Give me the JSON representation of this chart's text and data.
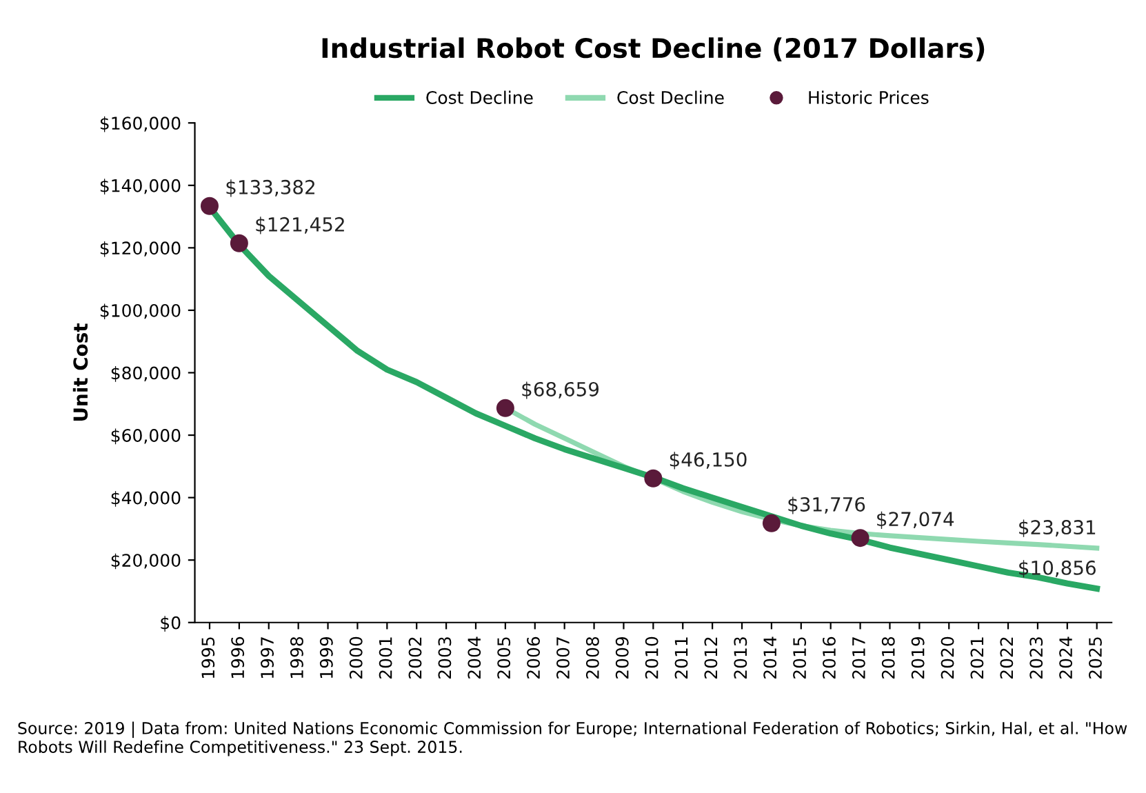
{
  "chart_data": {
    "type": "line",
    "title": "Industrial Robot Cost Decline (2017 Dollars)",
    "ylabel": "Unit Cost",
    "categories": [
      "1995",
      "1996",
      "1997",
      "1998",
      "1999",
      "2000",
      "2001",
      "2002",
      "2003",
      "2004",
      "2005",
      "2006",
      "2007",
      "2008",
      "2009",
      "2010",
      "2011",
      "2012",
      "2013",
      "2014",
      "2015",
      "2016",
      "2017",
      "2018",
      "2019",
      "2020",
      "2021",
      "2022",
      "2023",
      "2024",
      "2025"
    ],
    "series": [
      {
        "name": "Cost Decline",
        "color": "#2aa864",
        "values": [
          133000,
          121000,
          111000,
          103000,
          95000,
          87000,
          81000,
          77000,
          72000,
          67000,
          63000,
          59000,
          55500,
          52500,
          49500,
          46500,
          43000,
          40000,
          37000,
          34000,
          31000,
          28500,
          26500,
          24000,
          22000,
          20000,
          18000,
          16000,
          14500,
          12500,
          10856
        ],
        "value_labels": [
          null,
          null,
          null,
          null,
          null,
          null,
          null,
          null,
          null,
          null,
          null,
          null,
          null,
          null,
          null,
          null,
          null,
          null,
          null,
          null,
          null,
          null,
          null,
          null,
          null,
          null,
          null,
          null,
          null,
          null,
          "$10,856"
        ]
      },
      {
        "name": "Cost Decline",
        "color": "#8fd9b0",
        "values": [
          null,
          null,
          null,
          null,
          null,
          null,
          null,
          null,
          null,
          null,
          68700,
          63500,
          59000,
          54500,
          50000,
          46200,
          42000,
          38500,
          35500,
          33000,
          31000,
          29500,
          28500,
          27800,
          27200,
          26600,
          26000,
          25500,
          25000,
          24400,
          23831
        ],
        "value_labels": [
          null,
          null,
          null,
          null,
          null,
          null,
          null,
          null,
          null,
          null,
          null,
          null,
          null,
          null,
          null,
          null,
          null,
          null,
          null,
          null,
          null,
          null,
          null,
          null,
          null,
          null,
          null,
          null,
          null,
          null,
          "$23,831"
        ]
      },
      {
        "name": "Historic Prices",
        "type": "scatter",
        "color": "#5a1a3a",
        "marker": "circle",
        "values": [
          133382,
          121452,
          null,
          null,
          null,
          null,
          null,
          null,
          null,
          null,
          68659,
          null,
          null,
          null,
          null,
          46150,
          null,
          null,
          null,
          31776,
          null,
          null,
          27074,
          null,
          null,
          null,
          null,
          null,
          null,
          null,
          null
        ],
        "value_labels": [
          "$133,382",
          "$121,452",
          null,
          null,
          null,
          null,
          null,
          null,
          null,
          null,
          "$68,659",
          null,
          null,
          null,
          null,
          "$46,150",
          null,
          null,
          null,
          "$31,776",
          null,
          null,
          "$27,074",
          null,
          null,
          null,
          null,
          null,
          null,
          null,
          null
        ]
      }
    ],
    "ylim": [
      0,
      160000
    ],
    "yticks": [
      {
        "value": 0,
        "label": "$0"
      },
      {
        "value": 20000,
        "label": "$20,000"
      },
      {
        "value": 40000,
        "label": "$40,000"
      },
      {
        "value": 60000,
        "label": "$60,000"
      },
      {
        "value": 80000,
        "label": "$80,000"
      },
      {
        "value": 100000,
        "label": "$100,000"
      },
      {
        "value": 120000,
        "label": "$120,000"
      },
      {
        "value": 140000,
        "label": "$140,000"
      },
      {
        "value": 160000,
        "label": "$160,000"
      }
    ],
    "legend": "top",
    "annotations": [
      "Source: 2019 | Data from: United Nations Economic Commission for Europe; International Federation of Robotics; Sirkin, Hal, et al. \"How Robots Will Redefine Competitiveness.\" 23 Sept. 2015."
    ]
  }
}
